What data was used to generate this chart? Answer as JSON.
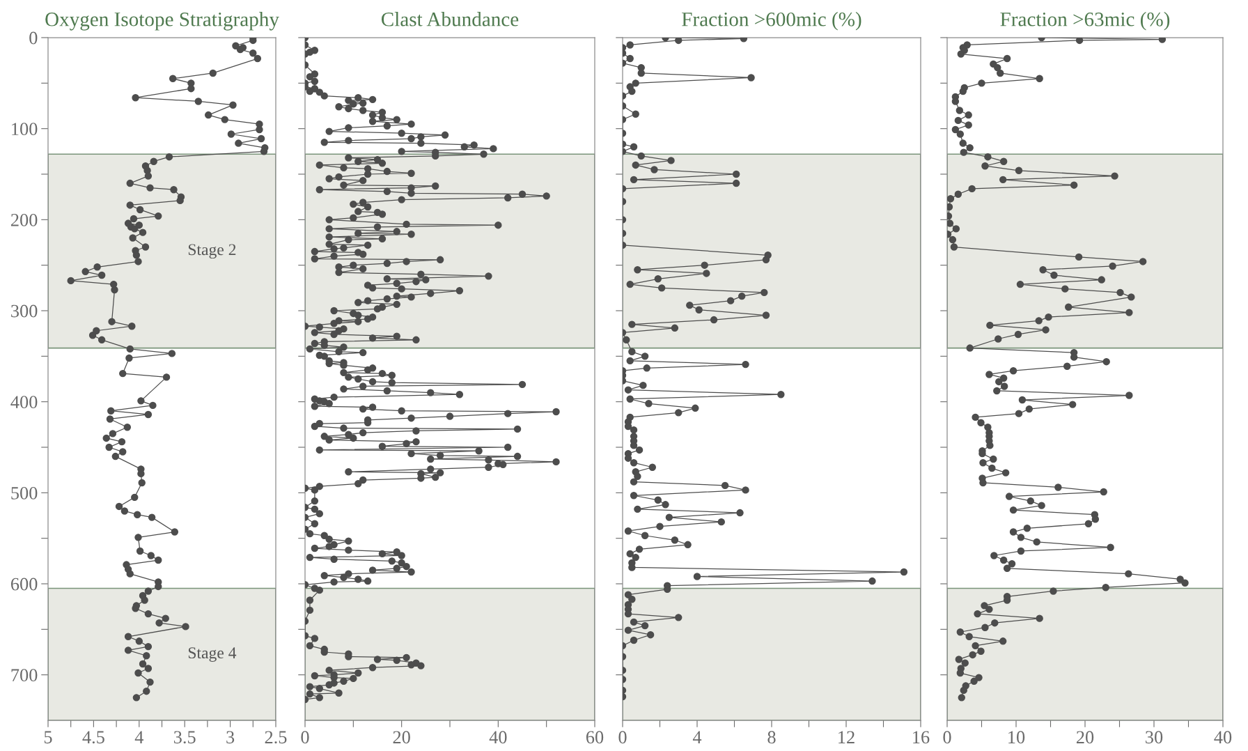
{
  "chart_data": [
    {
      "type": "line",
      "title": "Oxygen Isotope Stratigraphy",
      "marker": "circle",
      "line_style": "solid",
      "grid": false,
      "xlim": [
        5,
        2.5
      ],
      "xticks": [
        5,
        {
          "value": 4.75,
          "label": null
        },
        4.5,
        {
          "value": 4.25,
          "label": null
        },
        4,
        {
          "value": 3.75,
          "label": null
        },
        3.5,
        {
          "value": 3.25,
          "label": null
        },
        3,
        {
          "value": 2.75,
          "label": null
        },
        2.5
      ],
      "ylim": [
        750,
        0
      ],
      "yticks": [
        0,
        {
          "value": 50,
          "label": null
        },
        100,
        {
          "value": 150,
          "label": null
        },
        200,
        {
          "value": 250,
          "label": null
        },
        300,
        {
          "value": 350,
          "label": null
        },
        400,
        {
          "value": 450,
          "label": null
        },
        500,
        {
          "value": 550,
          "label": null
        },
        600,
        {
          "value": 650,
          "label": null
        },
        700
      ],
      "bands": [
        {
          "axis": "y",
          "from": 128,
          "to": 341,
          "label": "Stage 2",
          "color": "#e8e9e3"
        },
        {
          "axis": "y",
          "from": 605,
          "to": 750,
          "label": "Stage 4",
          "color": "#e8e9e3"
        }
      ],
      "series": [
        {
          "color": "#4d4d4d",
          "x": [
            2.75,
            2.75,
            2.94,
            2.86,
            2.89,
            2.75,
            2.7,
            3.19,
            3.63,
            3.43,
            3.43,
            4.04,
            3.35,
            2.97,
            3.24,
            3.06,
            2.68,
            2.68,
            2.99,
            2.66,
            2.91,
            2.62,
            2.63,
            3.67,
            3.84,
            3.93,
            3.91,
            3.9,
            4.1,
            3.88,
            3.62,
            3.54,
            3.55,
            4.1,
            3.99,
            3.79,
            4.06,
            4.12,
            4.0,
            4.09,
            4.05,
            3.96,
            4.07,
            3.93,
            4.04,
            4.03,
            4.01,
            4.46,
            4.59,
            4.41,
            4.75,
            4.28,
            4.27,
            4.3,
            4.08,
            4.47,
            4.51,
            4.41,
            4.1,
            3.64,
            4.11,
            4.18,
            3.7,
            3.98,
            3.85,
            4.31,
            3.9,
            4.32,
            4.13,
            4.29,
            4.36,
            4.19,
            4.33,
            4.18,
            4.26,
            3.98,
            3.98,
            3.97,
            4.05,
            4.22,
            4.16,
            4.02,
            3.86,
            3.61,
            4.01,
            3.99,
            3.87,
            3.79,
            4.14,
            4.12,
            4.1,
            3.79,
            3.79,
            3.9,
            3.96,
            3.94,
            4.03,
            4.04,
            3.9,
            3.71,
            3.78,
            3.49,
            4.12,
            4.0,
            3.9,
            4.12,
            3.92,
            3.96,
            3.9,
            4.01,
            3.88,
            3.92,
            4.03
          ],
          "values": [
            0,
            3,
            9,
            11,
            13,
            17,
            23,
            39,
            45,
            50,
            56,
            66,
            70,
            74,
            85,
            90,
            95,
            101,
            106,
            111,
            116,
            121,
            125,
            131,
            136,
            141,
            146,
            152,
            160,
            165,
            167,
            175,
            179,
            184,
            189,
            196,
            199,
            204,
            206,
            208,
            210,
            214,
            220,
            230,
            234,
            239,
            246,
            252,
            257,
            261,
            267,
            271,
            277,
            312,
            317,
            322,
            327,
            332,
            342,
            347,
            352,
            369,
            373,
            399,
            404,
            410,
            414,
            419,
            428,
            435,
            440,
            444,
            450,
            455,
            460,
            474,
            479,
            489,
            505,
            515,
            520,
            524,
            527,
            543,
            549,
            564,
            569,
            574,
            579,
            584,
            589,
            598,
            603,
            608,
            613,
            618,
            624,
            627,
            633,
            638,
            643,
            647,
            658,
            663,
            669,
            673,
            679,
            688,
            693,
            698,
            708,
            718,
            725
          ]
        }
      ]
    },
    {
      "type": "line",
      "title": "Clast Abundance",
      "marker": "circle",
      "line_style": "solid",
      "grid": false,
      "tick_labels": "x",
      "xlim": [
        0,
        60
      ],
      "xticks": [
        0,
        {
          "value": 10,
          "label": null
        },
        20,
        {
          "value": 30,
          "label": null
        },
        40,
        {
          "value": 50,
          "label": null
        },
        60
      ],
      "ylim": [
        750,
        0
      ],
      "yticks": [
        0,
        {
          "value": 50,
          "label": null
        },
        100,
        {
          "value": 150,
          "label": null
        },
        200,
        {
          "value": 250,
          "label": null
        },
        300,
        {
          "value": 350,
          "label": null
        },
        400,
        {
          "value": 450,
          "label": null
        },
        500,
        {
          "value": 550,
          "label": null
        },
        600,
        {
          "value": 650,
          "label": null
        },
        700
      ],
      "bands": [
        {
          "axis": "y",
          "from": 128,
          "to": 341,
          "color": "#e8e9e3"
        },
        {
          "axis": "y",
          "from": 605,
          "to": 750,
          "color": "#e8e9e3"
        }
      ],
      "series": [
        {
          "color": "#4d4d4d",
          "x": [
            0,
            0,
            2,
            1,
            0,
            0,
            2,
            1,
            2,
            0,
            0,
            2,
            1,
            3,
            4,
            11,
            14,
            9,
            12,
            10,
            7,
            9,
            12,
            16,
            14,
            16,
            19,
            14,
            22,
            17,
            9,
            5,
            20,
            29,
            24,
            22,
            9,
            4,
            24,
            35,
            33,
            39,
            20,
            27,
            37,
            27,
            9,
            15,
            11,
            16,
            3,
            8,
            13,
            17,
            22,
            13,
            7,
            5,
            12,
            8,
            27,
            22,
            3,
            17,
            22,
            45,
            50,
            42,
            20,
            12,
            10,
            13,
            11,
            15,
            16,
            10,
            5,
            21,
            40,
            15,
            5,
            19,
            11,
            22,
            5,
            16,
            9,
            5,
            13,
            8,
            6,
            2,
            11,
            12,
            6,
            2,
            28,
            21,
            17,
            10,
            7,
            12,
            7,
            24,
            38,
            17,
            25,
            23,
            19,
            13,
            14,
            20,
            32,
            26,
            19,
            22,
            17,
            13,
            11,
            19,
            16,
            15,
            6,
            10,
            11,
            14,
            13,
            7,
            11,
            6,
            0,
            3,
            8,
            7,
            2,
            6,
            19,
            14,
            23,
            4,
            2,
            4,
            8,
            1,
            7,
            12,
            3,
            4,
            5,
            8,
            5,
            8,
            14,
            13,
            8,
            16,
            18,
            9,
            11,
            14,
            18,
            45,
            12,
            8,
            17,
            26,
            32,
            6,
            2,
            3,
            4,
            5,
            2,
            14,
            12,
            20,
            52,
            42,
            30,
            22,
            13,
            13,
            3,
            2,
            8,
            44,
            23,
            12,
            9,
            4,
            10,
            5,
            23,
            21,
            16,
            42,
            3,
            36,
            22,
            28,
            44,
            26,
            38,
            52,
            40,
            41,
            38,
            26,
            9,
            28,
            24,
            27,
            24,
            12,
            11,
            3,
            0,
            2,
            2,
            0,
            2,
            3,
            0,
            2,
            0,
            1,
            4,
            5,
            9,
            6,
            5,
            2,
            9,
            19,
            16,
            20,
            1,
            6,
            18,
            20,
            21,
            19,
            14,
            22,
            9,
            4,
            8,
            11,
            13,
            6,
            0,
            2,
            3,
            1,
            1,
            0,
            0,
            2,
            1,
            4,
            4,
            9,
            9,
            21,
            15,
            19,
            23,
            22,
            24,
            14,
            5,
            11,
            6,
            2,
            6,
            10,
            8,
            6,
            5,
            1,
            3,
            7,
            1,
            3,
            0
          ],
          "values": [
            0,
            8,
            14,
            16,
            18,
            30,
            40,
            43,
            48,
            50,
            54,
            56,
            59,
            60,
            64,
            66,
            68,
            69,
            72,
            73,
            76,
            78,
            80,
            82,
            85,
            88,
            90,
            92,
            95,
            97,
            99,
            103,
            105,
            107,
            109,
            111,
            113,
            115,
            116,
            118,
            120,
            122,
            125,
            126,
            128,
            130,
            132,
            134,
            136,
            138,
            140,
            143,
            144,
            147,
            149,
            150,
            153,
            155,
            157,
            162,
            163,
            165,
            167,
            169,
            171,
            172,
            174,
            176,
            178,
            181,
            183,
            186,
            191,
            192,
            194,
            198,
            200,
            205,
            206,
            208,
            210,
            213,
            215,
            216,
            219,
            221,
            222,
            227,
            228,
            231,
            232,
            235,
            236,
            238,
            240,
            243,
            244,
            246,
            248,
            250,
            252,
            254,
            258,
            260,
            262,
            265,
            266,
            268,
            270,
            272,
            275,
            276,
            278,
            281,
            284,
            285,
            287,
            289,
            291,
            293,
            296,
            298,
            300,
            303,
            305,
            307,
            309,
            311,
            312,
            314,
            317,
            318,
            320,
            322,
            324,
            326,
            328,
            330,
            332,
            334,
            336,
            338,
            340,
            342,
            345,
            346,
            349,
            350,
            355,
            357,
            358,
            360,
            363,
            365,
            368,
            369,
            371,
            373,
            375,
            378,
            379,
            381,
            383,
            386,
            388,
            390,
            392,
            395,
            397,
            399,
            400,
            402,
            405,
            406,
            408,
            410,
            411,
            413,
            416,
            418,
            420,
            423,
            424,
            427,
            429,
            430,
            432,
            434,
            436,
            438,
            440,
            442,
            444,
            446,
            449,
            450,
            453,
            454,
            457,
            459,
            460,
            463,
            464,
            466,
            468,
            469,
            472,
            474,
            477,
            478,
            479,
            483,
            484,
            486,
            490,
            493,
            495,
            497,
            509,
            516,
            518,
            523,
            527,
            534,
            540,
            545,
            547,
            551,
            553,
            557,
            559,
            561,
            563,
            565,
            567,
            569,
            571,
            573,
            575,
            577,
            581,
            583,
            585,
            587,
            589,
            591,
            593,
            595,
            597,
            598,
            601,
            605,
            607,
            618,
            629,
            641,
            657,
            660,
            668,
            672,
            675,
            677,
            680,
            681,
            683,
            684,
            687,
            689,
            690,
            692,
            695,
            698,
            700,
            701,
            703,
            704,
            707,
            709,
            711,
            713,
            715,
            720,
            721,
            725,
            727
          ]
        }
      ]
    },
    {
      "type": "line",
      "title": "Fraction >600mic (%)",
      "marker": "circle",
      "line_style": "solid",
      "grid": false,
      "tick_labels": "x",
      "xlim": [
        0,
        16
      ],
      "xticks": [
        0,
        {
          "value": 2,
          "label": null
        },
        4,
        {
          "value": 6,
          "label": null
        },
        8,
        {
          "value": 10,
          "label": null
        },
        12,
        {
          "value": 14,
          "label": null
        },
        16
      ],
      "ylim": [
        750,
        0
      ],
      "yticks": [
        0,
        {
          "value": 50,
          "label": null
        },
        100,
        {
          "value": 150,
          "label": null
        },
        200,
        {
          "value": 250,
          "label": null
        },
        300,
        {
          "value": 350,
          "label": null
        },
        400,
        {
          "value": 450,
          "label": null
        },
        500,
        {
          "value": 550,
          "label": null
        },
        600,
        {
          "value": 650,
          "label": null
        },
        700
      ],
      "bands": [
        {
          "axis": "y",
          "from": 128,
          "to": 341,
          "color": "#e8e9e3"
        },
        {
          "axis": "y",
          "from": 605,
          "to": 750,
          "color": "#e8e9e3"
        }
      ],
      "series": [
        {
          "color": "#4d4d4d",
          "x": [
            2.3,
            6.5,
            3.0,
            0.4,
            0,
            0,
            0.4,
            0,
            1.0,
            1.0,
            6.9,
            0.7,
            0.4,
            0.5,
            0,
            0,
            0.7,
            0,
            0,
            0,
            0.6,
            0,
            1.0,
            2.6,
            0.7,
            1.7,
            6.1,
            0.6,
            6.1,
            0,
            0,
            0,
            0,
            0,
            7.8,
            7.7,
            4.4,
            0.8,
            4.5,
            1.9,
            0.4,
            2.1,
            7.6,
            6.4,
            5.8,
            3.6,
            4.1,
            7.7,
            4.9,
            0.5,
            2.8,
            0,
            0.2,
            0.5,
            1.2,
            0.4,
            6.6,
            1.3,
            0,
            0,
            0,
            1.1,
            0.3,
            8.5,
            0.4,
            1.4,
            3.9,
            3.0,
            0.4,
            0.3,
            0.3,
            0.6,
            0.6,
            0.6,
            0.6,
            0.9,
            0.3,
            0.3,
            0.6,
            1.6,
            0.7,
            0.8,
            0.6,
            5.5,
            6.6,
            0.6,
            1.9,
            2.3,
            0.8,
            6.3,
            2.5,
            5.3,
            2.0,
            0.3,
            1.2,
            2.8,
            3.5,
            0.9,
            0.4,
            0.7,
            0.5,
            0.5,
            15.1,
            4.0,
            13.4,
            2.4,
            2.4,
            0.3,
            0.5,
            0.3,
            0.3,
            0.3,
            3.0,
            0.6,
            1.2,
            0.3,
            1.5,
            0.6,
            0,
            0,
            0,
            0,
            0,
            0
          ],
          "values": [
            0,
            1,
            3,
            8,
            11,
            17,
            23,
            28,
            33,
            39,
            44,
            50,
            54,
            59,
            64,
            75,
            84,
            90,
            105,
            117,
            120,
            125,
            130,
            135,
            140,
            145,
            150,
            156,
            160,
            166,
            180,
            200,
            215,
            228,
            239,
            244,
            250,
            255,
            259,
            265,
            271,
            275,
            280,
            284,
            289,
            294,
            299,
            305,
            310,
            315,
            319,
            324,
            332,
            345,
            350,
            355,
            359,
            363,
            366,
            371,
            377,
            382,
            387,
            392,
            397,
            402,
            407,
            412,
            417,
            422,
            427,
            431,
            438,
            443,
            448,
            453,
            457,
            462,
            467,
            472,
            477,
            482,
            488,
            492,
            497,
            503,
            508,
            513,
            518,
            522,
            527,
            532,
            537,
            542,
            547,
            552,
            557,
            562,
            567,
            571,
            577,
            582,
            587,
            592,
            597,
            602,
            606,
            612,
            617,
            623,
            628,
            633,
            637,
            642,
            646,
            651,
            656,
            662,
            668,
            680,
            695,
            705,
            717,
            724
          ]
        }
      ]
    },
    {
      "type": "line",
      "title": "Fraction >63mic (%)",
      "marker": "circle",
      "line_style": "solid",
      "grid": false,
      "tick_labels": "x",
      "xlim": [
        0,
        40
      ],
      "xticks": [
        0,
        {
          "value": 5,
          "label": null
        },
        10,
        {
          "value": 15,
          "label": null
        },
        20,
        {
          "value": 25,
          "label": null
        },
        30,
        {
          "value": 35,
          "label": null
        },
        40
      ],
      "ylim": [
        750,
        0
      ],
      "yticks": [
        0,
        {
          "value": 50,
          "label": null
        },
        100,
        {
          "value": 150,
          "label": null
        },
        200,
        {
          "value": 250,
          "label": null
        },
        300,
        {
          "value": 350,
          "label": null
        },
        400,
        {
          "value": 450,
          "label": null
        },
        500,
        {
          "value": 550,
          "label": null
        },
        600,
        {
          "value": 650,
          "label": null
        },
        700
      ],
      "bands": [
        {
          "axis": "y",
          "from": 128,
          "to": 341,
          "color": "#e8e9e3"
        },
        {
          "axis": "y",
          "from": 605,
          "to": 750,
          "color": "#e8e9e3"
        }
      ],
      "series": [
        {
          "color": "#4d4d4d",
          "x": [
            13.7,
            31.2,
            19.2,
            2.9,
            2.3,
            2.5,
            2.0,
            8.7,
            6.7,
            7.3,
            7.7,
            13.4,
            5.0,
            2.5,
            2.3,
            1.2,
            1.2,
            1.8,
            3.1,
            1.6,
            3.1,
            1.2,
            1.9,
            2.3,
            3.3,
            2.4,
            5.9,
            8.2,
            5.5,
            10.4,
            24.3,
            8.1,
            18.4,
            3.6,
            1.6,
            0.5,
            0.3,
            0.2,
            0.4,
            1.3,
            0.1,
            0.8,
            1.0,
            19.1,
            28.4,
            24.0,
            13.9,
            15.5,
            22.4,
            10.6,
            17.1,
            25.1,
            26.7,
            17.6,
            26.4,
            14.7,
            13.3,
            6.2,
            14.3,
            10.3,
            7.4,
            3.3,
            18.4,
            18.4,
            23.1,
            17.4,
            9.6,
            6.1,
            8.2,
            7.5,
            8.3,
            7.2,
            26.4,
            10.9,
            18.2,
            11.9,
            10.4,
            4.1,
            4.9,
            5.9,
            6.1,
            6.1,
            6.1,
            6.2,
            5.1,
            5.1,
            6.7,
            5.2,
            6.5,
            8.5,
            5.1,
            5.2,
            16.1,
            22.7,
            9.0,
            12.1,
            13.7,
            9.6,
            21.4,
            21.5,
            20.5,
            11.6,
            9.6,
            10.7,
            13.0,
            23.7,
            10.7,
            6.8,
            8.2,
            9.4,
            8.7,
            26.3,
            33.8,
            34.5,
            23.0,
            15.4,
            8.7,
            8.7,
            5.4,
            6.1,
            4.4,
            13.4,
            6.9,
            5.5,
            1.9,
            3.2,
            8.1,
            4.1,
            4.9,
            3.7,
            1.7,
            2.6,
            2.0,
            1.9,
            4.6,
            3.9,
            2.7,
            2.4,
            2.1
          ],
          "values": [
            0,
            2,
            3,
            8,
            11,
            14,
            18,
            23,
            29,
            33,
            39,
            45,
            50,
            55,
            59,
            65,
            70,
            80,
            85,
            91,
            96,
            101,
            106,
            116,
            121,
            126,
            131,
            136,
            141,
            146,
            152,
            156,
            162,
            166,
            172,
            177,
            186,
            196,
            204,
            210,
            216,
            222,
            230,
            241,
            246,
            251,
            255,
            261,
            266,
            271,
            276,
            280,
            285,
            296,
            302,
            307,
            311,
            316,
            321,
            326,
            331,
            341,
            346,
            351,
            356,
            361,
            366,
            370,
            374,
            378,
            383,
            388,
            393,
            398,
            403,
            408,
            413,
            417,
            423,
            428,
            434,
            438,
            443,
            448,
            454,
            457,
            463,
            467,
            473,
            478,
            484,
            489,
            494,
            499,
            504,
            509,
            514,
            519,
            524,
            529,
            534,
            539,
            543,
            549,
            554,
            560,
            564,
            569,
            574,
            578,
            583,
            589,
            595,
            599,
            604,
            608,
            614,
            618,
            624,
            628,
            633,
            638,
            643,
            648,
            653,
            658,
            663,
            668,
            674,
            678,
            683,
            687,
            693,
            698,
            703,
            707,
            712,
            717,
            725
          ]
        }
      ]
    }
  ]
}
